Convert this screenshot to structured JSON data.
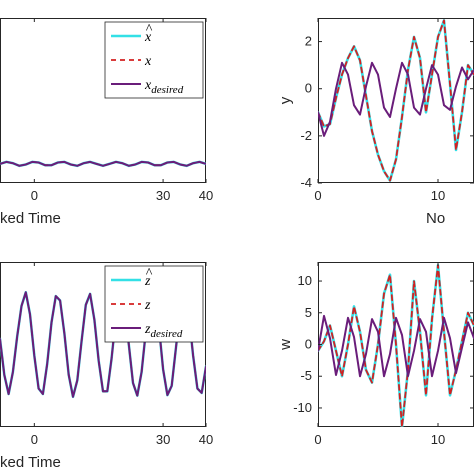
{
  "colors": {
    "estimate": "#33e0e6",
    "actual": "#d42020",
    "desired": "#6a1d7a",
    "axis": "#262626",
    "background": "#ffffff"
  },
  "chart_data": [
    {
      "id": "tl",
      "type": "line",
      "xlabel": "ked Time",
      "ylabel": "",
      "xlim": [
        -8,
        40
      ],
      "ylim": [
        -2.5,
        2.5
      ],
      "xticks": [
        {
          "v": 0,
          "label": "0"
        },
        {
          "v": 30,
          "label": "30"
        },
        {
          "v": 40,
          "label": "40"
        }
      ],
      "yticks": [],
      "legend_placement": "top-right",
      "legend": [
        "x̂",
        "x",
        "x_desired"
      ],
      "legend_display": [
        {
          "base": "x",
          "hat": true,
          "sub": ""
        },
        {
          "base": "x",
          "hat": false,
          "sub": ""
        },
        {
          "base": "x",
          "hat": false,
          "sub": "desired"
        }
      ],
      "series": [
        {
          "name": "x̂",
          "role": "estimate",
          "style": "solid",
          "x": [
            -8,
            -6.5,
            -5,
            -3.5,
            -2,
            -0.5,
            1,
            2.5,
            4,
            5.5,
            7,
            8.5,
            10,
            11.5,
            13,
            14.5,
            16,
            17.5,
            19,
            20.5,
            22,
            23.5,
            25,
            26.5,
            28,
            29.5,
            31,
            32.5,
            34,
            35.5,
            37,
            38.5,
            40
          ],
          "y": [
            -1.92,
            -1.86,
            -1.9,
            -1.98,
            -1.94,
            -1.86,
            -1.88,
            -1.96,
            -1.96,
            -1.88,
            -1.86,
            -1.94,
            -1.98,
            -1.9,
            -1.86,
            -1.92,
            -1.98,
            -1.92,
            -1.86,
            -1.9,
            -1.98,
            -1.94,
            -1.86,
            -1.88,
            -1.96,
            -1.96,
            -1.88,
            -1.86,
            -1.94,
            -1.98,
            -1.9,
            -1.86,
            -1.92
          ]
        },
        {
          "name": "x",
          "role": "actual",
          "style": "dashed",
          "x": [
            -8,
            -6.5,
            -5,
            -3.5,
            -2,
            -0.5,
            1,
            2.5,
            4,
            5.5,
            7,
            8.5,
            10,
            11.5,
            13,
            14.5,
            16,
            17.5,
            19,
            20.5,
            22,
            23.5,
            25,
            26.5,
            28,
            29.5,
            31,
            32.5,
            34,
            35.5,
            37,
            38.5,
            40
          ],
          "y": [
            -1.92,
            -1.86,
            -1.9,
            -1.98,
            -1.94,
            -1.86,
            -1.88,
            -1.96,
            -1.96,
            -1.88,
            -1.86,
            -1.94,
            -1.98,
            -1.9,
            -1.86,
            -1.92,
            -1.98,
            -1.92,
            -1.86,
            -1.9,
            -1.98,
            -1.94,
            -1.86,
            -1.88,
            -1.96,
            -1.96,
            -1.88,
            -1.86,
            -1.94,
            -1.98,
            -1.9,
            -1.86,
            -1.92
          ]
        },
        {
          "name": "x_desired",
          "role": "desired",
          "style": "solid",
          "x": [
            -8,
            -6.5,
            -5,
            -3.5,
            -2,
            -0.5,
            1,
            2.5,
            4,
            5.5,
            7,
            8.5,
            10,
            11.5,
            13,
            14.5,
            16,
            17.5,
            19,
            20.5,
            22,
            23.5,
            25,
            26.5,
            28,
            29.5,
            31,
            32.5,
            34,
            35.5,
            37,
            38.5,
            40
          ],
          "y": [
            -1.92,
            -1.86,
            -1.9,
            -1.98,
            -1.94,
            -1.86,
            -1.88,
            -1.96,
            -1.96,
            -1.88,
            -1.86,
            -1.94,
            -1.98,
            -1.9,
            -1.86,
            -1.92,
            -1.98,
            -1.92,
            -1.86,
            -1.9,
            -1.98,
            -1.94,
            -1.86,
            -1.88,
            -1.96,
            -1.96,
            -1.88,
            -1.86,
            -1.94,
            -1.98,
            -1.9,
            -1.86,
            -1.92
          ]
        }
      ]
    },
    {
      "id": "tr",
      "type": "line",
      "xlabel": "No",
      "ylabel": "y",
      "xlim": [
        0,
        13
      ],
      "ylim": [
        -4,
        3
      ],
      "xticks": [
        {
          "v": 0,
          "label": "0"
        },
        {
          "v": 10,
          "label": "10"
        }
      ],
      "yticks": [
        {
          "v": -4,
          "label": "-4"
        },
        {
          "v": -2,
          "label": "-2"
        },
        {
          "v": 0,
          "label": "0"
        },
        {
          "v": 2,
          "label": "2"
        }
      ],
      "legend": [],
      "series": [
        {
          "name": "",
          "role": "estimate",
          "style": "solid",
          "x": [
            0,
            0.5,
            1,
            1.5,
            2,
            2.5,
            3,
            3.5,
            4,
            4.5,
            5,
            5.5,
            6,
            6.5,
            7,
            7.5,
            8,
            8.5,
            9,
            9.5,
            10,
            10.5,
            11,
            11.5,
            12,
            12.5,
            13
          ],
          "y": [
            -1.0,
            -1.6,
            -1.5,
            -0.4,
            0.6,
            1.3,
            1.8,
            1.2,
            -0.3,
            -1.8,
            -2.8,
            -3.5,
            -3.9,
            -3.0,
            -1.2,
            0.8,
            2.2,
            1.3,
            -1.0,
            0.6,
            2.2,
            2.9,
            0.2,
            -2.6,
            -1.0,
            1.0,
            0.6
          ]
        },
        {
          "name": "",
          "role": "actual",
          "style": "dashed",
          "x": [
            0,
            0.5,
            1,
            1.5,
            2,
            2.5,
            3,
            3.5,
            4,
            4.5,
            5,
            5.5,
            6,
            6.5,
            7,
            7.5,
            8,
            8.5,
            9,
            9.5,
            10,
            10.5,
            11,
            11.5,
            12,
            12.5,
            13
          ],
          "y": [
            -1.0,
            -1.6,
            -1.5,
            -0.4,
            0.6,
            1.3,
            1.8,
            1.2,
            -0.3,
            -1.8,
            -2.8,
            -3.5,
            -3.9,
            -3.0,
            -1.2,
            0.8,
            2.2,
            1.3,
            -1.0,
            0.6,
            2.2,
            2.9,
            0.2,
            -2.6,
            -1.0,
            1.0,
            0.6
          ]
        },
        {
          "name": "",
          "role": "desired",
          "style": "solid",
          "x": [
            0,
            0.5,
            1,
            1.5,
            2,
            2.5,
            3,
            3.5,
            4,
            4.5,
            5,
            5.5,
            6,
            6.5,
            7,
            7.5,
            8,
            8.5,
            9,
            9.5,
            10,
            10.5,
            11,
            11.5,
            12,
            12.5,
            13
          ],
          "y": [
            -1.0,
            -2.0,
            -1.4,
            0.0,
            1.1,
            0.6,
            -0.7,
            -1.1,
            0.1,
            1.1,
            0.6,
            -0.8,
            -1.2,
            0.0,
            1.1,
            0.6,
            -0.8,
            -1.1,
            0.0,
            1.0,
            0.6,
            -0.7,
            -0.9,
            0.1,
            0.9,
            0.4,
            0.8
          ]
        }
      ]
    },
    {
      "id": "bl",
      "type": "line",
      "xlabel": "ked Time",
      "ylabel": "",
      "xlim": [
        -8,
        40
      ],
      "ylim": [
        -1.5,
        1.5
      ],
      "xticks": [
        {
          "v": 0,
          "label": "0"
        },
        {
          "v": 30,
          "label": "30"
        },
        {
          "v": 40,
          "label": "40"
        }
      ],
      "yticks": [],
      "legend_placement": "top-right",
      "legend": [
        "ẑ",
        "z",
        "z_desired"
      ],
      "legend_display": [
        {
          "base": "z",
          "hat": true,
          "sub": ""
        },
        {
          "base": "z",
          "hat": false,
          "sub": ""
        },
        {
          "base": "z",
          "hat": false,
          "sub": "desired"
        }
      ],
      "series": [
        {
          "name": "ẑ",
          "role": "estimate",
          "style": "solid",
          "x": [
            -8,
            -7,
            -6,
            -5,
            -4,
            -3,
            -2,
            -1,
            0,
            1,
            2,
            3,
            4,
            5,
            6,
            7,
            8,
            9,
            10,
            11,
            12,
            13,
            14,
            15,
            16,
            17,
            18,
            19,
            20,
            21,
            22,
            23,
            24,
            25,
            26,
            27,
            28,
            29,
            30,
            31,
            32,
            33,
            34,
            35,
            36,
            37,
            38,
            39,
            40
          ],
          "y": [
            0.1,
            -0.55,
            -0.9,
            -0.5,
            0.15,
            0.7,
            0.95,
            0.55,
            -0.2,
            -0.8,
            -0.9,
            -0.35,
            0.4,
            0.88,
            0.8,
            0.2,
            -0.55,
            -0.95,
            -0.65,
            0.05,
            0.72,
            0.92,
            0.45,
            -0.3,
            -0.85,
            -0.85,
            -0.25,
            0.5,
            0.93,
            0.7,
            0.0,
            -0.7,
            -0.93,
            -0.5,
            0.25,
            0.82,
            0.88,
            0.35,
            -0.45,
            -0.92,
            -0.75,
            -0.05,
            0.65,
            0.93,
            0.55,
            -0.2,
            -0.8,
            -0.88,
            -0.4
          ]
        },
        {
          "name": "z",
          "role": "actual",
          "style": "dashed",
          "x": [
            -8,
            -7,
            -6,
            -5,
            -4,
            -3,
            -2,
            -1,
            0,
            1,
            2,
            3,
            4,
            5,
            6,
            7,
            8,
            9,
            10,
            11,
            12,
            13,
            14,
            15,
            16,
            17,
            18,
            19,
            20,
            21,
            22,
            23,
            24,
            25,
            26,
            27,
            28,
            29,
            30,
            31,
            32,
            33,
            34,
            35,
            36,
            37,
            38,
            39,
            40
          ],
          "y": [
            0.1,
            -0.55,
            -0.9,
            -0.5,
            0.15,
            0.7,
            0.95,
            0.55,
            -0.2,
            -0.8,
            -0.9,
            -0.35,
            0.4,
            0.88,
            0.8,
            0.2,
            -0.55,
            -0.95,
            -0.65,
            0.05,
            0.72,
            0.92,
            0.45,
            -0.3,
            -0.85,
            -0.85,
            -0.25,
            0.5,
            0.93,
            0.7,
            0.0,
            -0.7,
            -0.93,
            -0.5,
            0.25,
            0.82,
            0.88,
            0.35,
            -0.45,
            -0.92,
            -0.75,
            -0.05,
            0.65,
            0.93,
            0.55,
            -0.2,
            -0.8,
            -0.88,
            -0.4
          ]
        },
        {
          "name": "z_desired",
          "role": "desired",
          "style": "solid",
          "x": [
            -8,
            -7,
            -6,
            -5,
            -4,
            -3,
            -2,
            -1,
            0,
            1,
            2,
            3,
            4,
            5,
            6,
            7,
            8,
            9,
            10,
            11,
            12,
            13,
            14,
            15,
            16,
            17,
            18,
            19,
            20,
            21,
            22,
            23,
            24,
            25,
            26,
            27,
            28,
            29,
            30,
            31,
            32,
            33,
            34,
            35,
            36,
            37,
            38,
            39,
            40
          ],
          "y": [
            0.1,
            -0.55,
            -0.9,
            -0.5,
            0.15,
            0.7,
            0.95,
            0.55,
            -0.2,
            -0.8,
            -0.9,
            -0.35,
            0.4,
            0.88,
            0.8,
            0.2,
            -0.55,
            -0.95,
            -0.65,
            0.05,
            0.72,
            0.92,
            0.45,
            -0.3,
            -0.85,
            -0.85,
            -0.25,
            0.5,
            0.93,
            0.7,
            0.0,
            -0.7,
            -0.93,
            -0.5,
            0.25,
            0.82,
            0.88,
            0.35,
            -0.45,
            -0.92,
            -0.75,
            -0.05,
            0.65,
            0.93,
            0.55,
            -0.2,
            -0.8,
            -0.88,
            -0.4
          ]
        }
      ]
    },
    {
      "id": "br",
      "type": "line",
      "xlabel": "",
      "ylabel": "w",
      "xlim": [
        0,
        13
      ],
      "ylim": [
        -13,
        13
      ],
      "xticks": [
        {
          "v": 0,
          "label": "0"
        },
        {
          "v": 10,
          "label": "10"
        }
      ],
      "yticks": [
        {
          "v": -10,
          "label": "-10"
        },
        {
          "v": -5,
          "label": "-5"
        },
        {
          "v": 0,
          "label": "0"
        },
        {
          "v": 5,
          "label": "5"
        },
        {
          "v": 10,
          "label": "10"
        }
      ],
      "legend": [],
      "series": [
        {
          "name": "",
          "role": "estimate",
          "style": "solid",
          "x": [
            0,
            0.5,
            1,
            1.5,
            2,
            2.5,
            3,
            3.5,
            4,
            4.5,
            5,
            5.5,
            6,
            6.5,
            7,
            7.5,
            8,
            8.5,
            9,
            9.5,
            10,
            10.5,
            11,
            11.5,
            12,
            12.5,
            13
          ],
          "y": [
            -1.0,
            0.5,
            3.0,
            -1.0,
            -5.0,
            0.0,
            6.0,
            2.0,
            -4.0,
            -6.0,
            0.0,
            8.0,
            11.0,
            0.0,
            -13.0,
            -4.0,
            10.0,
            2.0,
            -8.0,
            4.0,
            12.5,
            2.0,
            -8.0,
            -4.0,
            0.5,
            5.0,
            3.0
          ]
        },
        {
          "name": "",
          "role": "actual",
          "style": "dashed",
          "x": [
            0,
            0.5,
            1,
            1.5,
            2,
            2.5,
            3,
            3.5,
            4,
            4.5,
            5,
            5.5,
            6,
            6.5,
            7,
            7.5,
            8,
            8.5,
            9,
            9.5,
            10,
            10.5,
            11,
            11.5,
            12,
            12.5,
            13
          ],
          "y": [
            -1.0,
            0.5,
            3.0,
            -1.0,
            -5.0,
            0.0,
            6.0,
            2.0,
            -4.0,
            -6.0,
            0.0,
            8.0,
            11.0,
            0.0,
            -13.0,
            -4.0,
            10.0,
            2.0,
            -8.0,
            4.0,
            12.5,
            2.0,
            -8.0,
            -4.0,
            0.5,
            5.0,
            3.0
          ]
        },
        {
          "name": "",
          "role": "desired",
          "style": "solid",
          "x": [
            0,
            0.5,
            1,
            1.5,
            2,
            2.5,
            3,
            3.5,
            4,
            4.5,
            5,
            5.5,
            6,
            6.5,
            7,
            7.5,
            8,
            8.5,
            9,
            9.5,
            10,
            10.5,
            11,
            11.5,
            12,
            12.5,
            13
          ],
          "y": [
            -1.0,
            4.5,
            1.0,
            -4.8,
            -1.0,
            4.2,
            1.2,
            -5.0,
            -1.5,
            4.0,
            2.0,
            -5.0,
            -1.5,
            4.2,
            1.5,
            -5.0,
            -1.0,
            4.0,
            2.0,
            -5.0,
            -1.0,
            4.2,
            1.0,
            -4.5,
            -0.5,
            3.5,
            1.0
          ]
        }
      ]
    }
  ]
}
